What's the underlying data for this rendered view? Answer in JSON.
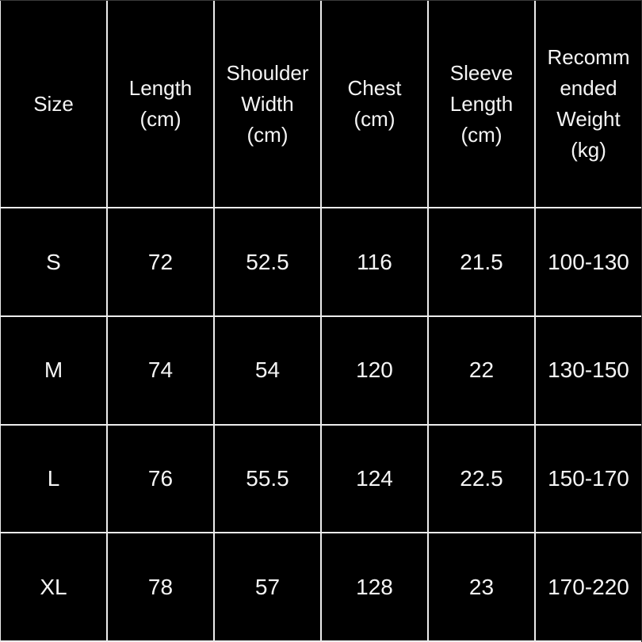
{
  "chart_data": {
    "type": "table",
    "columns": [
      "Size",
      "Length (cm)",
      "Shoulder Width (cm)",
      "Chest (cm)",
      "Sleeve Length (cm)",
      "Recommended Weight (kg)"
    ],
    "rows": [
      [
        "S",
        "72",
        "52.5",
        "116",
        "21.5",
        "100-130"
      ],
      [
        "M",
        "74",
        "54",
        "120",
        "22",
        "130-150"
      ],
      [
        "L",
        "76",
        "55.5",
        "124",
        "22.5",
        "150-170"
      ],
      [
        "XL",
        "78",
        "57",
        "128",
        "23",
        "170-220"
      ]
    ]
  },
  "table": {
    "header_display": [
      "Size",
      "Length\n(cm)",
      "Shoulder\nWidth\n(cm)",
      "Chest\n(cm)",
      "Sleeve\nLength\n(cm)",
      "Recomm\nended\nWeight\n(kg)"
    ]
  },
  "colors": {
    "background": "#000000",
    "text": "#f5f5f5",
    "gridline": "#ededed"
  }
}
